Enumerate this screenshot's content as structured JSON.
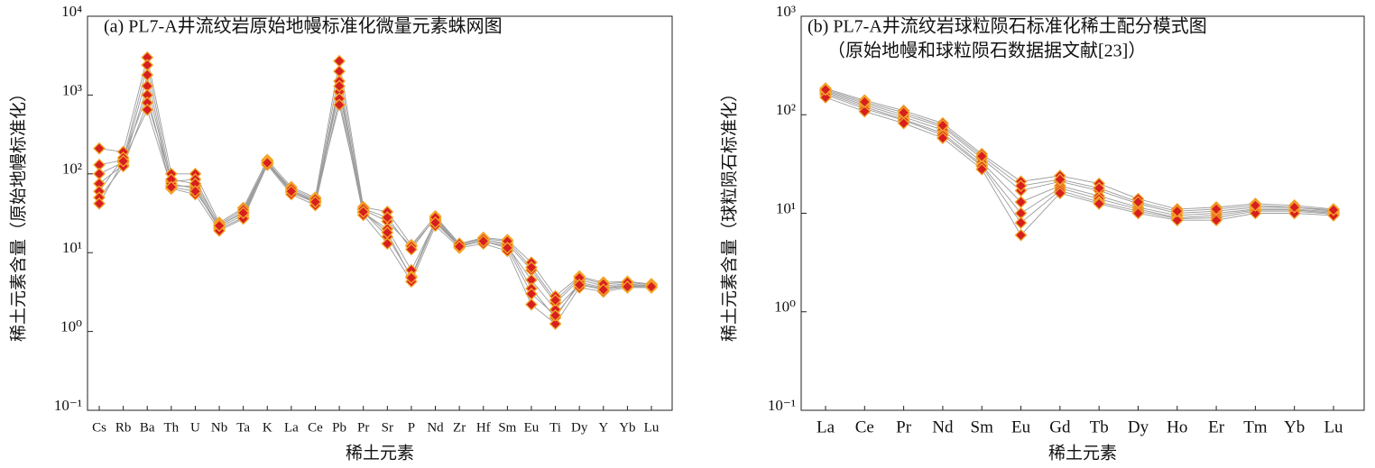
{
  "chart_data": [
    {
      "type": "line",
      "title": "(a) PL7-A井流纹岩原始地幔标准化微量元素蛛网图",
      "x_label": "稀土元素",
      "y_label": "稀土元素含量（原始地幔标准化）",
      "log_y": true,
      "line_color": "#9a9a9a",
      "marker_color": "#d71f1f",
      "marker_edge": "#f4a62a",
      "ylim": [
        0.1,
        10000
      ],
      "yticks": [
        {
          "value": 0.1,
          "label": "10⁻¹"
        },
        {
          "value": 1,
          "label": "10⁰"
        },
        {
          "value": 10,
          "label": "10¹"
        },
        {
          "value": 100,
          "label": "10²"
        },
        {
          "value": 1000,
          "label": "10³"
        },
        {
          "value": 10000,
          "label": "10⁴"
        }
      ],
      "categories": [
        "Cs",
        "Rb",
        "Ba",
        "Th",
        "U",
        "Nb",
        "Ta",
        "K",
        "La",
        "Ce",
        "Pb",
        "Pr",
        "Sr",
        "P",
        "Nd",
        "Zr",
        "Hf",
        "Sm",
        "Eu",
        "Ti",
        "Dy",
        "Y",
        "Yb",
        "Lu"
      ],
      "series": [
        {
          "values": [
            210,
            190,
            3000,
            100,
            100,
            24,
            37,
            150,
            68,
            50,
            2700,
            38,
            33,
            12.5,
            29,
            13,
            15.5,
            14.5,
            7.5,
            2.8,
            5,
            4.2,
            4.3,
            4
          ]
        },
        {
          "values": [
            130,
            150,
            2400,
            80,
            85,
            22,
            33,
            140,
            62,
            46,
            2000,
            35,
            25,
            12,
            27,
            12.5,
            14.5,
            13,
            6,
            2.3,
            4.5,
            3.8,
            4,
            3.8
          ]
        },
        {
          "values": [
            100,
            140,
            1800,
            70,
            70,
            21,
            30,
            135,
            58,
            43,
            1500,
            32,
            20,
            6,
            25,
            12,
            14,
            12,
            4.5,
            1.9,
            4,
            3.5,
            3.8,
            3.7
          ]
        },
        {
          "values": [
            75,
            130,
            1300,
            75,
            65,
            20,
            28,
            145,
            60,
            45,
            1100,
            33,
            16,
            5,
            26,
            12.2,
            14.8,
            12.5,
            3.5,
            1.5,
            4.2,
            3.6,
            3.9,
            3.8
          ]
        },
        {
          "values": [
            60,
            160,
            1000,
            65,
            55,
            19,
            27,
            130,
            55,
            40,
            900,
            30,
            13,
            4.3,
            22,
            11.5,
            13,
            10.5,
            2.2,
            1.25,
            3.6,
            3.2,
            3.6,
            3.6
          ]
        },
        {
          "values": [
            50,
            125,
            800,
            85,
            75,
            23,
            35,
            140,
            65,
            48,
            750,
            36,
            28,
            11,
            28,
            13,
            15,
            14,
            6.5,
            2.5,
            4.8,
            4,
            4.2,
            3.9
          ]
        },
        {
          "values": [
            42,
            145,
            650,
            68,
            60,
            22,
            32,
            138,
            60,
            44,
            1300,
            33,
            18,
            4.8,
            24,
            12,
            14,
            11.5,
            3,
            1.6,
            3.9,
            3.4,
            3.7,
            3.7
          ]
        }
      ]
    },
    {
      "type": "line",
      "title": "(b) PL7-A井流纹岩球粒陨石标准化稀土配分模式图",
      "subtitle": "（原始地幔和球粒陨石数据据文献[23]）",
      "x_label": "稀土元素",
      "y_label": "稀土元素含量（球粒陨石标准化）",
      "log_y": true,
      "line_color": "#9a9a9a",
      "marker_color": "#d71f1f",
      "marker_edge": "#f4a62a",
      "ylim": [
        0.1,
        1000
      ],
      "yticks": [
        {
          "value": 0.1,
          "label": "10⁻¹"
        },
        {
          "value": 1,
          "label": "10⁰"
        },
        {
          "value": 10,
          "label": "10¹"
        },
        {
          "value": 100,
          "label": "10²"
        },
        {
          "value": 1000,
          "label": "10³"
        }
      ],
      "categories": [
        "La",
        "Ce",
        "Pr",
        "Nd",
        "Sm",
        "Eu",
        "Gd",
        "Tb",
        "Dy",
        "Ho",
        "Er",
        "Tm",
        "Yb",
        "Lu"
      ],
      "series": [
        {
          "values": [
            185,
            140,
            110,
            82,
            40,
            21,
            24,
            20,
            14,
            11,
            11.5,
            12.5,
            12,
            11
          ]
        },
        {
          "values": [
            175,
            130,
            100,
            75,
            36,
            17,
            21,
            17,
            12.5,
            10,
            10.5,
            11.5,
            11.5,
            10.5
          ]
        },
        {
          "values": [
            170,
            125,
            95,
            70,
            33,
            13,
            19,
            15,
            11.5,
            9.5,
            10,
            11,
            11,
            10.3
          ]
        },
        {
          "values": [
            165,
            120,
            90,
            65,
            31,
            10,
            18,
            14,
            11,
            9,
            9.5,
            10.8,
            10.8,
            10
          ]
        },
        {
          "values": [
            160,
            115,
            88,
            62,
            30,
            8,
            17,
            13,
            10.5,
            8.8,
            9,
            10.5,
            10.5,
            9.8
          ]
        },
        {
          "values": [
            150,
            108,
            82,
            58,
            28,
            6,
            16,
            12.5,
            10,
            8.5,
            8.5,
            10,
            10,
            9.5
          ]
        },
        {
          "values": [
            180,
            135,
            105,
            78,
            38,
            19,
            22,
            18,
            13,
            10.5,
            11,
            12,
            11.5,
            10.8
          ]
        }
      ]
    }
  ]
}
